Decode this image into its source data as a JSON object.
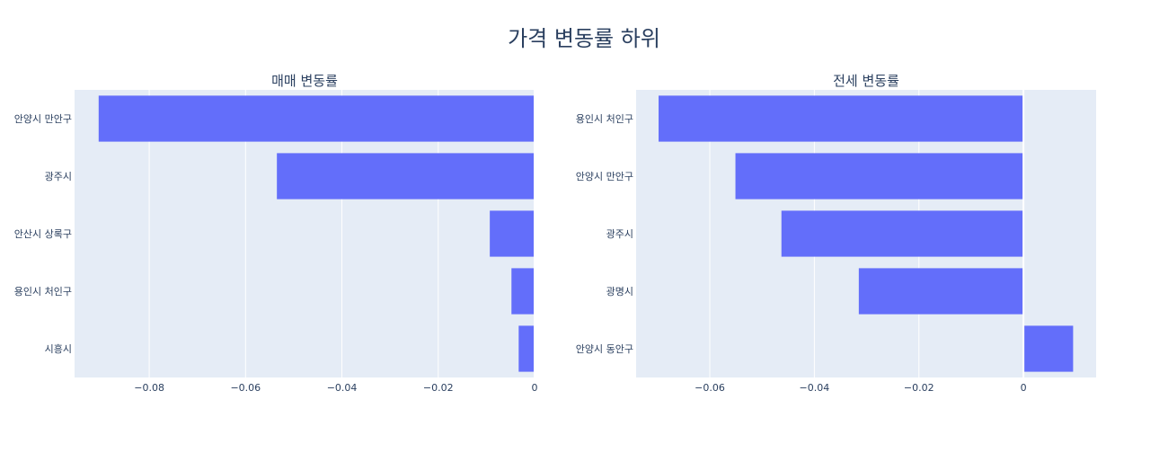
{
  "title": "가격 변동률 하위",
  "colors": {
    "bar": "#636efa",
    "plot_bg": "#e5ecf6",
    "grid": "#ffffff",
    "text": "#2a3f5f"
  },
  "chart_data": [
    {
      "type": "bar",
      "orientation": "horizontal",
      "title": "매매 변동률",
      "categories": [
        "안양시 만안구",
        "광주시",
        "안산시 상록구",
        "용인시 처인구",
        "시흥시"
      ],
      "values": [
        -0.0905,
        -0.0535,
        -0.0093,
        -0.0048,
        -0.0033
      ],
      "xlim": [
        -0.0955,
        0.0
      ],
      "xticks": [
        -0.08,
        -0.06,
        -0.04,
        -0.02,
        0
      ],
      "xtick_labels": [
        "−0.08",
        "−0.06",
        "−0.04",
        "−0.02",
        "0"
      ],
      "grid": true
    },
    {
      "type": "bar",
      "orientation": "horizontal",
      "title": "전세 변동률",
      "categories": [
        "용인시 처인구",
        "안양시 만안구",
        "광주시",
        "광명시",
        "안양시 동안구"
      ],
      "values": [
        -0.0698,
        -0.0551,
        -0.0463,
        -0.0315,
        0.0095
      ],
      "xlim": [
        -0.0741,
        0.0139
      ],
      "xticks": [
        -0.06,
        -0.04,
        -0.02,
        0
      ],
      "xtick_labels": [
        "−0.06",
        "−0.04",
        "−0.02",
        "0"
      ],
      "grid": true
    }
  ]
}
